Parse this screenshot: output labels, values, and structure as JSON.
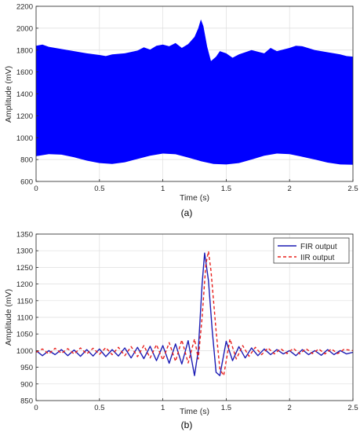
{
  "figure": {
    "captions": [
      "(a)",
      "(b)"
    ]
  },
  "chart_data": [
    {
      "type": "area",
      "xlabel": "Time (s)",
      "ylabel": "Amplitude (mV)",
      "xlim": [
        0,
        2.5
      ],
      "ylim": [
        600,
        2200
      ],
      "xticks": [
        0,
        0.5,
        1,
        1.5,
        2,
        2.5
      ],
      "xtick_labels": [
        "0",
        "0.5",
        "1",
        "1.5",
        "2",
        "2.5"
      ],
      "yticks": [
        600,
        800,
        1000,
        1200,
        1400,
        1600,
        1800,
        2000,
        2200
      ],
      "ytick_labels": [
        "600",
        "800",
        "1000",
        "1200",
        "1400",
        "1600",
        "1800",
        "2000",
        "2200"
      ],
      "grid": true,
      "color": "#0000ff",
      "series": [
        {
          "upper_envelope": {
            "x": [
              0,
              0.05,
              0.1,
              0.2,
              0.3,
              0.4,
              0.5,
              0.55,
              0.6,
              0.7,
              0.8,
              0.85,
              0.9,
              0.95,
              1.0,
              1.05,
              1.1,
              1.15,
              1.2,
              1.25,
              1.28,
              1.3,
              1.32,
              1.35,
              1.38,
              1.42,
              1.45,
              1.5,
              1.55,
              1.6,
              1.7,
              1.8,
              1.85,
              1.9,
              2.0,
              2.05,
              2.1,
              2.2,
              2.3,
              2.35,
              2.4,
              2.45,
              2.5
            ],
            "y": [
              1840,
              1850,
              1830,
              1810,
              1790,
              1770,
              1755,
              1745,
              1760,
              1770,
              1795,
              1825,
              1805,
              1840,
              1850,
              1835,
              1865,
              1820,
              1855,
              1920,
              2000,
              2080,
              2020,
              1830,
              1700,
              1740,
              1790,
              1770,
              1730,
              1760,
              1800,
              1770,
              1820,
              1790,
              1820,
              1840,
              1835,
              1800,
              1780,
              1770,
              1760,
              1745,
              1740
            ]
          },
          "lower_envelope": {
            "x": [
              0,
              0.1,
              0.2,
              0.3,
              0.4,
              0.5,
              0.6,
              0.7,
              0.8,
              0.9,
              1.0,
              1.1,
              1.2,
              1.3,
              1.4,
              1.5,
              1.6,
              1.7,
              1.8,
              1.9,
              2.0,
              2.1,
              2.2,
              2.3,
              2.4,
              2.5
            ],
            "y": [
              830,
              850,
              845,
              820,
              790,
              768,
              760,
              775,
              805,
              835,
              855,
              848,
              818,
              785,
              760,
              755,
              768,
              800,
              835,
              855,
              850,
              825,
              800,
              772,
              755,
              752
            ]
          }
        }
      ]
    },
    {
      "type": "line",
      "xlabel": "Time (s)",
      "ylabel": "Amplitude (mV)",
      "xlim": [
        0,
        2.5
      ],
      "ylim": [
        850,
        1350
      ],
      "xticks": [
        0,
        0.5,
        1,
        1.5,
        2,
        2.5
      ],
      "xtick_labels": [
        "0",
        "0.5",
        "1",
        "1.5",
        "2",
        "2.5"
      ],
      "yticks": [
        850,
        900,
        950,
        1000,
        1050,
        1100,
        1150,
        1200,
        1250,
        1300,
        1350
      ],
      "ytick_labels": [
        "850",
        "900",
        "950",
        "1000",
        "1050",
        "1100",
        "1150",
        "1200",
        "1250",
        "1300",
        "1350"
      ],
      "grid": true,
      "legend": "top-right",
      "series": [
        {
          "name": "FIR output",
          "color": "#1c1cb4",
          "style": "solid",
          "x": [
            0,
            0.05,
            0.1,
            0.15,
            0.2,
            0.25,
            0.3,
            0.35,
            0.4,
            0.45,
            0.5,
            0.55,
            0.6,
            0.65,
            0.7,
            0.75,
            0.8,
            0.85,
            0.9,
            0.95,
            1.0,
            1.05,
            1.1,
            1.15,
            1.2,
            1.25,
            1.28,
            1.31,
            1.33,
            1.36,
            1.39,
            1.42,
            1.45,
            1.5,
            1.55,
            1.6,
            1.65,
            1.7,
            1.75,
            1.8,
            1.85,
            1.9,
            1.95,
            2.0,
            2.05,
            2.1,
            2.15,
            2.2,
            2.25,
            2.3,
            2.35,
            2.4,
            2.45,
            2.5
          ],
          "y": [
            1000,
            985,
            1000,
            988,
            1003,
            985,
            1002,
            983,
            1003,
            984,
            1005,
            982,
            1003,
            984,
            1008,
            978,
            1010,
            976,
            1013,
            970,
            1015,
            962,
            1020,
            960,
            1030,
            925,
            1000,
            1200,
            1293,
            1210,
            1060,
            935,
            925,
            1028,
            970,
            1012,
            978,
            1008,
            985,
            1005,
            988,
            1003,
            990,
            1000,
            985,
            1003,
            988,
            1000,
            986,
            1003,
            988,
            1000,
            990,
            995
          ]
        },
        {
          "name": "IIR output",
          "color": "#e8201c",
          "style": "dashed",
          "x": [
            0,
            0.05,
            0.1,
            0.15,
            0.2,
            0.25,
            0.3,
            0.35,
            0.4,
            0.45,
            0.5,
            0.55,
            0.6,
            0.65,
            0.7,
            0.75,
            0.8,
            0.85,
            0.9,
            0.95,
            1.0,
            1.05,
            1.1,
            1.15,
            1.2,
            1.25,
            1.28,
            1.31,
            1.34,
            1.36,
            1.38,
            1.42,
            1.45,
            1.48,
            1.53,
            1.58,
            1.63,
            1.68,
            1.73,
            1.78,
            1.83,
            1.88,
            1.93,
            1.98,
            2.03,
            2.08,
            2.13,
            2.18,
            2.23,
            2.28,
            2.33,
            2.38,
            2.43,
            2.5
          ],
          "y": [
            995,
            1005,
            990,
            1007,
            992,
            1006,
            990,
            1008,
            990,
            1007,
            989,
            1009,
            988,
            1010,
            985,
            1012,
            982,
            1015,
            978,
            1018,
            972,
            1024,
            968,
            1032,
            963,
            1035,
            975,
            1100,
            1260,
            1298,
            1240,
            1060,
            945,
            925,
            1035,
            975,
            1015,
            983,
            1010,
            988,
            1008,
            990,
            1006,
            991,
            1007,
            990,
            1006,
            991,
            1005,
            990,
            1005,
            991,
            1004,
            1000
          ]
        }
      ]
    }
  ]
}
